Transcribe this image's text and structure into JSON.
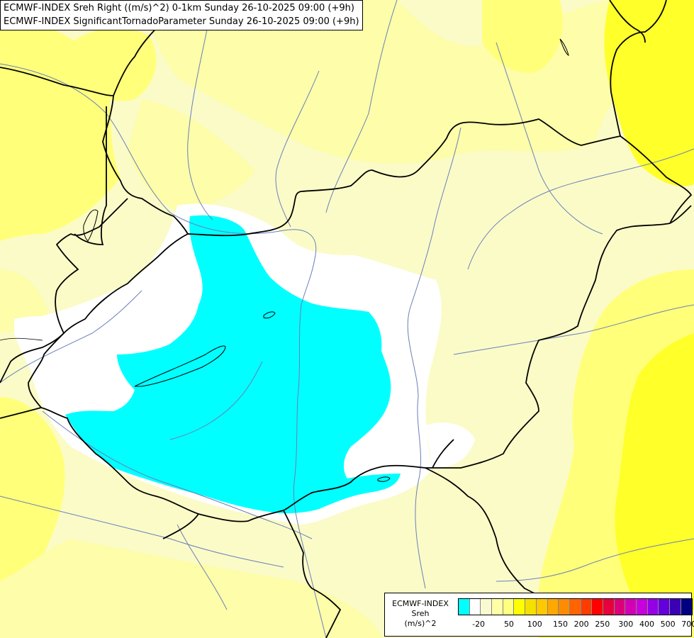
{
  "title": {
    "line1": "ECMWF-INDEX Sreh Right ((m/s)^2) 0-1km Sunday 26-10-2025 09:00 (+9h)",
    "line2": "ECMWF-INDEX SignificantTornadoParameter Sunday 26-10-2025 09:00 (+9h)"
  },
  "legend": {
    "line1": "ECMWF-INDEX",
    "line2": "Sreh",
    "line3": "(m/s)^2",
    "swatches": [
      "#00ffff",
      "#ffffff",
      "#fafad2",
      "#ffffa8",
      "#ffff80",
      "#ffff00",
      "#f5e000",
      "#ffc800",
      "#ffa800",
      "#ff8c00",
      "#ff6400",
      "#ff3c00",
      "#ff0000",
      "#e6003c",
      "#dc0078",
      "#d200b4",
      "#c800dc",
      "#9600e6",
      "#6400dc",
      "#3c00b4",
      "#000080"
    ],
    "labels": [
      "-20",
      "50",
      "100",
      "150",
      "200",
      "250",
      "300",
      "400",
      "500",
      "700"
    ]
  },
  "colors": {
    "background": "#fbfbc8",
    "pale_yellow": "#fdfdaa",
    "yellow": "#ffff7a",
    "bright_yellow": "#ffff2a",
    "cyan": "#00ffff",
    "white": "#ffffff",
    "border": "#000000",
    "river": "#6a7fb8"
  }
}
